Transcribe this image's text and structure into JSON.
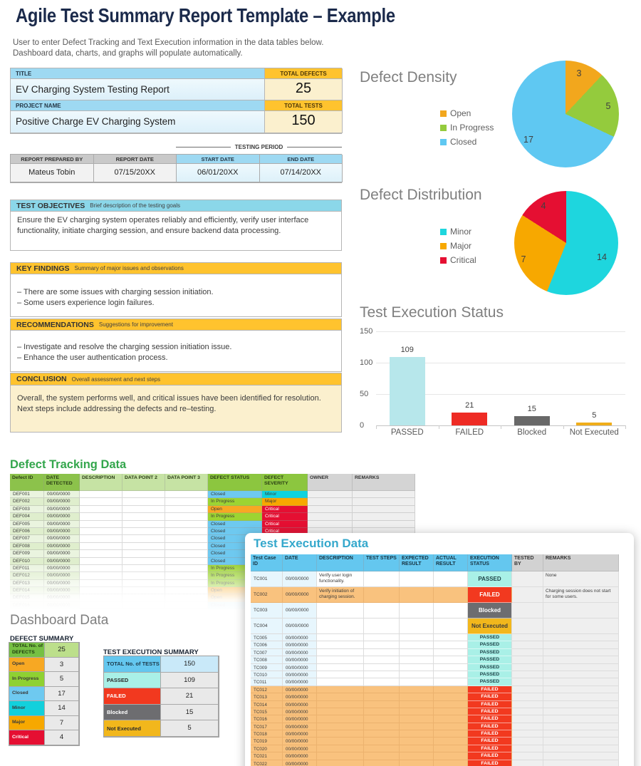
{
  "page": {
    "title": "Agile Test Summary Report Template – Example",
    "subtitle_line1": "User to enter Defect Tracking and Text Execution information in the data tables below.",
    "subtitle_line2": "Dashboard data, charts, and graphs will populate automatically."
  },
  "info_table": {
    "title_label": "TITLE",
    "title_value": "EV Charging System Testing Report",
    "total_defects_label": "TOTAL DEFECTS",
    "total_defects_value": "25",
    "project_label": "PROJECT NAME",
    "project_value": "Positive Charge EV Charging System",
    "total_tests_label": "TOTAL TESTS",
    "total_tests_value": "150"
  },
  "report_meta": {
    "testing_period_label": "TESTING PERIOD",
    "headers": [
      "REPORT PREPARED BY",
      "REPORT DATE",
      "START DATE",
      "END DATE"
    ],
    "values": [
      "Mateus Tobin",
      "07/15/20XX",
      "06/01/20XX",
      "07/14/20XX"
    ]
  },
  "sections": [
    {
      "heading": "TEST OBJECTIVES",
      "descriptor": "Brief description of the testing goals",
      "lines": [
        "Ensure the EV charging system operates reliably and efficiently, verify user interface functionality, initiate charging session, and ensure backend data processing."
      ]
    },
    {
      "heading": "KEY FINDINGS",
      "descriptor": "Summary of major issues and observations",
      "lines": [
        "– There are some issues with charging session initiation.",
        "– Some users experience login failures."
      ]
    },
    {
      "heading": "RECOMMENDATIONS",
      "descriptor": "Suggestions for improvement",
      "lines": [
        "– Investigate and resolve the charging session initiation issue.",
        "– Enhance the user authentication process."
      ]
    },
    {
      "heading": "CONCLUSION",
      "descriptor": "Overall assessment and next steps",
      "lines": [
        "Overall, the system performs well, and critical issues have been identified for resolution. Next steps include addressing the defects and re–testing."
      ]
    }
  ],
  "chart_data": [
    {
      "type": "pie",
      "title": "Defect Density",
      "labels": [
        "Open",
        "In Progress",
        "Closed"
      ],
      "values": [
        3,
        5,
        17
      ],
      "total": 25,
      "colors": [
        "#F2A71D",
        "#94CB3D",
        "#5FC8F2"
      ],
      "legend_position": "left"
    },
    {
      "type": "pie",
      "title": "Defect Distribution",
      "labels": [
        "Minor",
        "Major",
        "Critical"
      ],
      "values": [
        14,
        7,
        4
      ],
      "total": 25,
      "colors": [
        "#1ED6DE",
        "#F7A800",
        "#E50F32"
      ],
      "legend_position": "left"
    },
    {
      "type": "bar",
      "title": "Test Execution Status",
      "categories": [
        "PASSED",
        "FAILED",
        "Blocked",
        "Not Executed"
      ],
      "values": [
        109,
        21,
        15,
        5
      ],
      "colors": [
        "#B7E7EB",
        "#EE2B24",
        "#686868",
        "#F0AD1A"
      ],
      "ylim": [
        0,
        150
      ],
      "yticks": [
        0,
        50,
        100,
        150
      ],
      "grid": true,
      "legend_position": "none"
    }
  ],
  "status_colors": {
    "Open": {
      "bg": "#F7A823",
      "fg": "#3A3A3A"
    },
    "In Progress": {
      "bg": "#9CD432",
      "fg": "#3A3A3A"
    },
    "Closed": {
      "bg": "#6EC9F0",
      "fg": "#3A3A3A"
    },
    "Minor": {
      "bg": "#0ED3DE",
      "fg": "#3A3A3A"
    },
    "Major": {
      "bg": "#F7A800",
      "fg": "#3A3A3A"
    },
    "Critical": {
      "bg": "#E50F32",
      "fg": "#FFFFFF"
    },
    "PASSED": {
      "bg": "#A9F0E7",
      "fg": "#20454A"
    },
    "FAILED": {
      "bg": "#F2391F",
      "fg": "#FFFFFF"
    },
    "Blocked": {
      "bg": "#6D6D70",
      "fg": "#FFFFFF"
    },
    "Not Executed": {
      "bg": "#F2B71C",
      "fg": "#3A3A3A"
    }
  },
  "defect_tracking": {
    "title": "Defect Tracking Data",
    "headers": [
      "Defect ID",
      "DATE DETECTED",
      "DESCRIPTION",
      "DATA POINT 2",
      "DATA POINT 3",
      "DEFECT STATUS",
      "DEFECT SEVERITY",
      "OWNER",
      "REMARKS"
    ],
    "rows": [
      {
        "id": "DEF001",
        "date": "00/00/0000",
        "status": "Closed",
        "severity": "Minor"
      },
      {
        "id": "DEF002",
        "date": "00/00/0000",
        "status": "In Progress",
        "severity": "Major"
      },
      {
        "id": "DEF003",
        "date": "00/00/0000",
        "status": "Open",
        "severity": "Critical"
      },
      {
        "id": "DEF004",
        "date": "00/00/0000",
        "status": "In Progress",
        "severity": "Critical"
      },
      {
        "id": "DEF005",
        "date": "00/00/0000",
        "status": "Closed",
        "severity": "Critical"
      },
      {
        "id": "DEF006",
        "date": "00/00/0000",
        "status": "Closed",
        "severity": "Critical"
      },
      {
        "id": "DEF007",
        "date": "00/00/0000",
        "status": "Closed",
        "severity": ""
      },
      {
        "id": "DEF008",
        "date": "00/00/0000",
        "status": "Closed",
        "severity": ""
      },
      {
        "id": "DEF009",
        "date": "00/00/0000",
        "status": "Closed",
        "severity": ""
      },
      {
        "id": "DEF010",
        "date": "00/00/0000",
        "status": "Closed",
        "severity": ""
      },
      {
        "id": "DEF011",
        "date": "00/00/0000",
        "status": "In Progress",
        "severity": ""
      },
      {
        "id": "DEF012",
        "date": "00/00/0000",
        "status": "In Progress",
        "severity": ""
      },
      {
        "id": "DEF013",
        "date": "00/00/0000",
        "status": "In Progress",
        "severity": ""
      },
      {
        "id": "DEF014",
        "date": "00/00/0000",
        "status": "Open",
        "severity": ""
      },
      {
        "id": "DEF015",
        "date": "00/00/0000",
        "status": "Open",
        "severity": ""
      },
      {
        "id": "DEF016",
        "date": "00/00/0000",
        "status": "Closed",
        "severity": ""
      }
    ]
  },
  "test_execution": {
    "title": "Test Execution Data",
    "headers": [
      "Test Case ID",
      "DATE",
      "DESCRIPTION",
      "TEST STEPS",
      "EXPECTED RESULT",
      "ACTUAL RESULT",
      "EXECUTION STATUS",
      "TESTED BY",
      "REMARKS"
    ],
    "rows": [
      {
        "id": "TC001",
        "date": "00/00/0000",
        "description": "Verify user login functionality.",
        "status": "PASSED",
        "remarks": "None",
        "tall": true,
        "highlight": false
      },
      {
        "id": "TC002",
        "date": "00/00/0000",
        "description": "Verify initiation of charging session.",
        "status": "FAILED",
        "remarks": "Charging session does not start for some users.",
        "tall": true,
        "highlight": true
      },
      {
        "id": "TC003",
        "date": "00/00/0000",
        "description": "",
        "status": "Blocked",
        "remarks": "",
        "tall": true,
        "highlight": false
      },
      {
        "id": "TC004",
        "date": "00/00/0000",
        "description": "",
        "status": "Not Executed",
        "remarks": "",
        "tall": true,
        "highlight": false
      },
      {
        "id": "TC005",
        "date": "00/00/0000",
        "description": "",
        "status": "PASSED",
        "remarks": "",
        "tall": false,
        "highlight": false
      },
      {
        "id": "TC006",
        "date": "00/00/0000",
        "description": "",
        "status": "PASSED",
        "remarks": "",
        "tall": false,
        "highlight": false
      },
      {
        "id": "TC007",
        "date": "00/00/0000",
        "description": "",
        "status": "PASSED",
        "remarks": "",
        "tall": false,
        "highlight": false
      },
      {
        "id": "TC008",
        "date": "00/00/0000",
        "description": "",
        "status": "PASSED",
        "remarks": "",
        "tall": false,
        "highlight": false
      },
      {
        "id": "TC009",
        "date": "00/00/0000",
        "description": "",
        "status": "PASSED",
        "remarks": "",
        "tall": false,
        "highlight": false
      },
      {
        "id": "TC010",
        "date": "00/00/0000",
        "description": "",
        "status": "PASSED",
        "remarks": "",
        "tall": false,
        "highlight": false
      },
      {
        "id": "TC011",
        "date": "00/00/0000",
        "description": "",
        "status": "PASSED",
        "remarks": "",
        "tall": false,
        "highlight": false
      },
      {
        "id": "TC012",
        "date": "00/00/0000",
        "description": "",
        "status": "FAILED",
        "remarks": "",
        "tall": false,
        "highlight": true
      },
      {
        "id": "TC013",
        "date": "00/00/0000",
        "description": "",
        "status": "FAILED",
        "remarks": "",
        "tall": false,
        "highlight": true
      },
      {
        "id": "TC014",
        "date": "00/00/0000",
        "description": "",
        "status": "FAILED",
        "remarks": "",
        "tall": false,
        "highlight": true
      },
      {
        "id": "TC015",
        "date": "00/00/0000",
        "description": "",
        "status": "FAILED",
        "remarks": "",
        "tall": false,
        "highlight": true
      },
      {
        "id": "TC016",
        "date": "00/00/0000",
        "description": "",
        "status": "FAILED",
        "remarks": "",
        "tall": false,
        "highlight": true
      },
      {
        "id": "TC017",
        "date": "00/00/0000",
        "description": "",
        "status": "FAILED",
        "remarks": "",
        "tall": false,
        "highlight": true
      },
      {
        "id": "TC018",
        "date": "00/00/0000",
        "description": "",
        "status": "FAILED",
        "remarks": "",
        "tall": false,
        "highlight": true
      },
      {
        "id": "TC019",
        "date": "00/00/0000",
        "description": "",
        "status": "FAILED",
        "remarks": "",
        "tall": false,
        "highlight": true
      },
      {
        "id": "TC020",
        "date": "00/00/0000",
        "description": "",
        "status": "FAILED",
        "remarks": "",
        "tall": false,
        "highlight": true
      },
      {
        "id": "TC021",
        "date": "00/00/0000",
        "description": "",
        "status": "FAILED",
        "remarks": "",
        "tall": false,
        "highlight": true
      },
      {
        "id": "TC022",
        "date": "00/00/0000",
        "description": "",
        "status": "FAILED",
        "remarks": "",
        "tall": false,
        "highlight": true
      }
    ]
  },
  "dashboard": {
    "title": "Dashboard Data",
    "defect_summary": {
      "label": "DEFECT SUMMARY",
      "rows": [
        {
          "label": "TOTAL No. of DEFECTS",
          "value": "25",
          "bg": "#76C043",
          "fg": "#203A10",
          "value_bg": "#BCDF8B"
        },
        {
          "label": "Open",
          "value": "3",
          "bg": "#F7A823",
          "fg": "#3A3A3A",
          "value_bg": "#E9E9E9"
        },
        {
          "label": "In Progress",
          "value": "5",
          "bg": "#8FD132",
          "fg": "#3A3A3A",
          "value_bg": "#E9E9E9"
        },
        {
          "label": "Closed",
          "value": "17",
          "bg": "#6EC9F0",
          "fg": "#3A3A3A",
          "value_bg": "#E9E9E9"
        },
        {
          "label": "Minor",
          "value": "14",
          "bg": "#12D0DC",
          "fg": "#3A3A3A",
          "value_bg": "#E9E9E9"
        },
        {
          "label": "Major",
          "value": "7",
          "bg": "#F7A800",
          "fg": "#3A3A3A",
          "value_bg": "#E9E9E9"
        },
        {
          "label": "Critical",
          "value": "4",
          "bg": "#E50F32",
          "fg": "#FFFFFF",
          "value_bg": "#E9E9E9"
        }
      ]
    },
    "test_execution_summary": {
      "label": "TEST EXECUTION SUMMARY",
      "rows": [
        {
          "label": "TOTAL No. of TESTS",
          "value": "150",
          "bg": "#64C7EF",
          "fg": "#1D3A4A",
          "value_bg": "#C9E9F9"
        },
        {
          "label": "PASSED",
          "value": "109",
          "bg": "#A9F0E7",
          "fg": "#2B2B2B",
          "value_bg": "#E9E9E9"
        },
        {
          "label": "FAILED",
          "value": "21",
          "bg": "#F2391F",
          "fg": "#FFFFFF",
          "value_bg": "#E9E9E9"
        },
        {
          "label": "Blocked",
          "value": "15",
          "bg": "#6D6D70",
          "fg": "#FFFFFF",
          "value_bg": "#E9E9E9"
        },
        {
          "label": "Not Executed",
          "value": "5",
          "bg": "#F2B71C",
          "fg": "#2B2B2B",
          "value_bg": "#E9E9E9"
        }
      ]
    }
  }
}
